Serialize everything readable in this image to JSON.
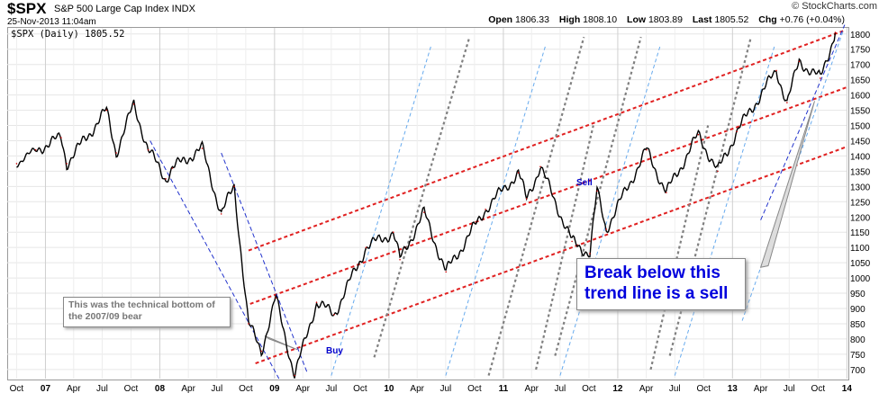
{
  "header": {
    "symbol": "$SPX",
    "name": "S&P 500 Large Cap Index  INDX",
    "datetime": "25-Nov-2013 11:04am",
    "brand": "© StockCharts.com",
    "open_label": "Open",
    "open": "1806.33",
    "high_label": "High",
    "high": "1808.10",
    "low_label": "Low",
    "low": "1803.89",
    "last_label": "Last",
    "last": "1805.52",
    "chg_label": "Chg",
    "chg": "+0.76 (+0.04%)"
  },
  "legend": "$SPX (Daily) 1805.52",
  "annotations": {
    "technical_bottom": "This was the technical bottom of the 2007/09 bear",
    "break_note": "Break below this trend line is a sell",
    "buy": "Buy",
    "sell": "Sell"
  },
  "colors": {
    "price": "#000000",
    "channel": "#e02020",
    "gann_gray": "#808080",
    "gann_blue": "#66aaee",
    "trend_blue": "#2233cc"
  },
  "chart_data": {
    "type": "line",
    "series": [
      {
        "values_x": [
          "2006-10-01",
          "2006-12-01",
          "2007-02-20",
          "2007-03-10",
          "2007-07-15",
          "2007-08-15",
          "2007-10-10",
          "2007-11-25",
          "2008-01-20",
          "2008-02-10",
          "2008-05-15",
          "2008-07-15",
          "2008-08-25",
          "2008-10-10",
          "2008-11-20",
          "2009-01-05",
          "2009-03-06",
          "2009-05-15",
          "2009-07-10",
          "2009-10-20",
          "2010-01-15",
          "2010-02-05",
          "2010-04-23",
          "2010-07-02",
          "2010-11-05",
          "2011-02-18",
          "2011-03-16",
          "2011-04-29",
          "2011-08-08",
          "2011-10-04",
          "2011-10-27",
          "2011-11-25",
          "2012-04-02",
          "2012-06-04",
          "2012-09-14",
          "2012-11-15",
          "2013-01-15",
          "2013-05-21",
          "2013-06-24",
          "2013-08-02",
          "2013-10-08",
          "2013-11-25"
        ],
        "y": [
          1375,
          1420,
          1460,
          1375,
          1550,
          1410,
          1570,
          1420,
          1325,
          1360,
          1425,
          1210,
          1300,
          850,
          760,
          935,
          680,
          920,
          880,
          1100,
          1150,
          1060,
          1215,
          1020,
          1225,
          1345,
          1260,
          1365,
          1120,
          1080,
          1285,
          1160,
          1420,
          1280,
          1470,
          1350,
          1480,
          1680,
          1575,
          1710,
          1655,
          1805
        ]
      }
    ],
    "x_axis": {
      "tick_labels": [
        "Oct",
        "07",
        "Apr",
        "Jul",
        "Oct",
        "08",
        "Apr",
        "Jul",
        "Oct",
        "09",
        "Apr",
        "Jul",
        "Oct",
        "10",
        "Apr",
        "Jul",
        "Oct",
        "11",
        "Apr",
        "Jul",
        "Oct",
        "12",
        "Apr",
        "Jul",
        "Oct",
        "13",
        "Apr",
        "Jul",
        "Oct",
        "14"
      ],
      "range": [
        "2006-09-01",
        "2013-12-31"
      ]
    },
    "y_axis": {
      "tick_labels": [
        "700",
        "750",
        "800",
        "850",
        "900",
        "950",
        "1000",
        "1050",
        "1100",
        "1150",
        "1200",
        "1250",
        "1300",
        "1350",
        "1400",
        "1450",
        "1500",
        "1550",
        "1600",
        "1650",
        "1700",
        "1750",
        "1800"
      ],
      "range": [
        670,
        1820
      ],
      "position": "right"
    },
    "grid": true
  }
}
